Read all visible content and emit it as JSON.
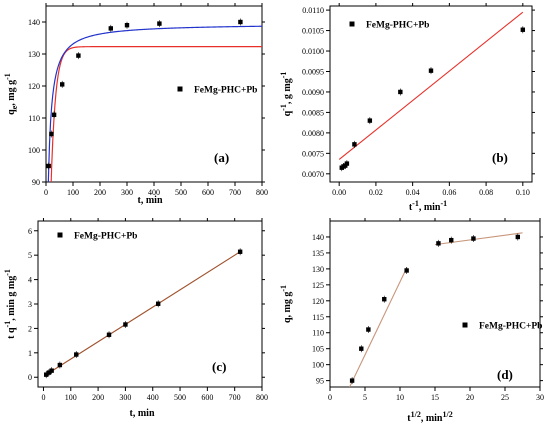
{
  "colors": {
    "axis": "#000000",
    "red_fit": "#e8302a",
    "blue_fit": "#2233cc",
    "brown_fit": "#a0522d",
    "tan_fit": "#c8967a",
    "marker": "#000000"
  },
  "chart_data": [
    {
      "type": "scatter",
      "panel_label": "(a)",
      "legend": "FeMg-PHC+Pb",
      "xlabel": "t, min",
      "ylabel": "q_e, mg g^-1",
      "xlim": [
        0,
        800
      ],
      "ylim": [
        90,
        145
      ],
      "xticks": [
        0,
        100,
        200,
        300,
        400,
        500,
        600,
        700,
        800
      ],
      "yticks": [
        90,
        100,
        110,
        120,
        130,
        140
      ],
      "xtick_labels": [
        "0",
        "100",
        "200",
        "300",
        "400",
        "500",
        "600",
        "700",
        "800"
      ],
      "ytick_labels": [
        "90",
        "100",
        "110",
        "120",
        "130",
        "140"
      ],
      "series": [
        {
          "kind": "points",
          "x": [
            10,
            20,
            30,
            60,
            120,
            240,
            300,
            420,
            720
          ],
          "y": [
            95,
            105,
            111,
            120.5,
            129.5,
            138,
            139,
            139.5,
            140
          ]
        },
        {
          "kind": "curve",
          "model": "pfo",
          "color": "red",
          "params": {
            "qe": 132.3,
            "k": 0.06
          }
        },
        {
          "kind": "curve",
          "model": "pso",
          "color": "blue",
          "params": {
            "qe": 139.5,
            "k": 0.0015
          }
        }
      ]
    },
    {
      "type": "scatter",
      "panel_label": "(b)",
      "legend": "FeMg-PHC+Pb",
      "xlabel": "t^-1, min^-1",
      "ylabel": "q^-1, g mg^-1",
      "xlim": [
        -0.005,
        0.105
      ],
      "ylim": [
        0.0068,
        0.0111
      ],
      "xticks": [
        0.0,
        0.02,
        0.04,
        0.06,
        0.08,
        0.1
      ],
      "yticks": [
        0.007,
        0.0075,
        0.008,
        0.0085,
        0.009,
        0.0095,
        0.01,
        0.0105,
        0.011
      ],
      "xtick_labels": [
        "0.00",
        "0.02",
        "0.04",
        "0.06",
        "0.08",
        "0.10"
      ],
      "ytick_labels": [
        "0.0070",
        "0.0075",
        "0.0080",
        "0.0085",
        "0.0090",
        "0.0095",
        "0.0100",
        "0.0105",
        "0.0110"
      ],
      "series": [
        {
          "kind": "points",
          "x": [
            0.0014,
            0.0024,
            0.0033,
            0.0042,
            0.0083,
            0.0167,
            0.0333,
            0.05,
            0.1
          ],
          "y": [
            0.00715,
            0.00718,
            0.0072,
            0.00725,
            0.00772,
            0.0083,
            0.009,
            0.00952,
            0.01052
          ]
        },
        {
          "kind": "line",
          "color": "red",
          "x": [
            0.0,
            0.1
          ],
          "y": [
            0.00735,
            0.01095
          ]
        }
      ]
    },
    {
      "type": "scatter",
      "panel_label": "(c)",
      "legend": "FeMg-PHC+Pb",
      "xlabel": "t, min",
      "ylabel": "t q^-1, min g mg^-1",
      "xlim": [
        -20,
        800
      ],
      "ylim": [
        -0.4,
        6.4
      ],
      "xticks": [
        0,
        100,
        200,
        300,
        400,
        500,
        600,
        700,
        800
      ],
      "yticks": [
        0,
        1,
        2,
        3,
        4,
        5,
        6
      ],
      "xtick_labels": [
        "0",
        "100",
        "200",
        "300",
        "400",
        "500",
        "600",
        "700",
        "800"
      ],
      "ytick_labels": [
        "0",
        "1",
        "2",
        "3",
        "4",
        "5",
        "6"
      ],
      "series": [
        {
          "kind": "points",
          "x": [
            10,
            20,
            30,
            60,
            120,
            240,
            300,
            420,
            720
          ],
          "y": [
            0.105,
            0.19,
            0.27,
            0.5,
            0.93,
            1.74,
            2.16,
            3.01,
            5.14
          ]
        },
        {
          "kind": "line",
          "color": "brown",
          "x": [
            5,
            720
          ],
          "y": [
            0.07,
            5.14
          ]
        }
      ]
    },
    {
      "type": "scatter",
      "panel_label": "(d)",
      "legend": "FeMg-PHC+Pb",
      "xlabel": "t^1/2, min^1/2",
      "ylabel": "q, mg g^-1",
      "xlim": [
        0,
        30
      ],
      "ylim": [
        93,
        145
      ],
      "xticks": [
        0,
        5,
        10,
        15,
        20,
        25,
        30
      ],
      "yticks": [
        95,
        100,
        105,
        110,
        115,
        120,
        125,
        130,
        135,
        140
      ],
      "xtick_labels": [
        "0",
        "5",
        "10",
        "15",
        "20",
        "25",
        "30"
      ],
      "ytick_labels": [
        "95",
        "100",
        "105",
        "110",
        "115",
        "120",
        "125",
        "130",
        "135",
        "140"
      ],
      "series": [
        {
          "kind": "points",
          "x": [
            3.16,
            4.47,
            5.48,
            7.75,
            10.95,
            15.49,
            17.32,
            20.49,
            26.83
          ],
          "y": [
            95,
            105,
            111,
            120.5,
            129.5,
            138,
            139,
            139.5,
            140
          ]
        },
        {
          "kind": "line",
          "color": "tan",
          "x": [
            2.8,
            11.0
          ],
          "y": [
            93,
            130.5
          ]
        },
        {
          "kind": "line",
          "color": "tan",
          "x": [
            15.0,
            27.5
          ],
          "y": [
            137.6,
            141.3
          ]
        }
      ]
    }
  ]
}
